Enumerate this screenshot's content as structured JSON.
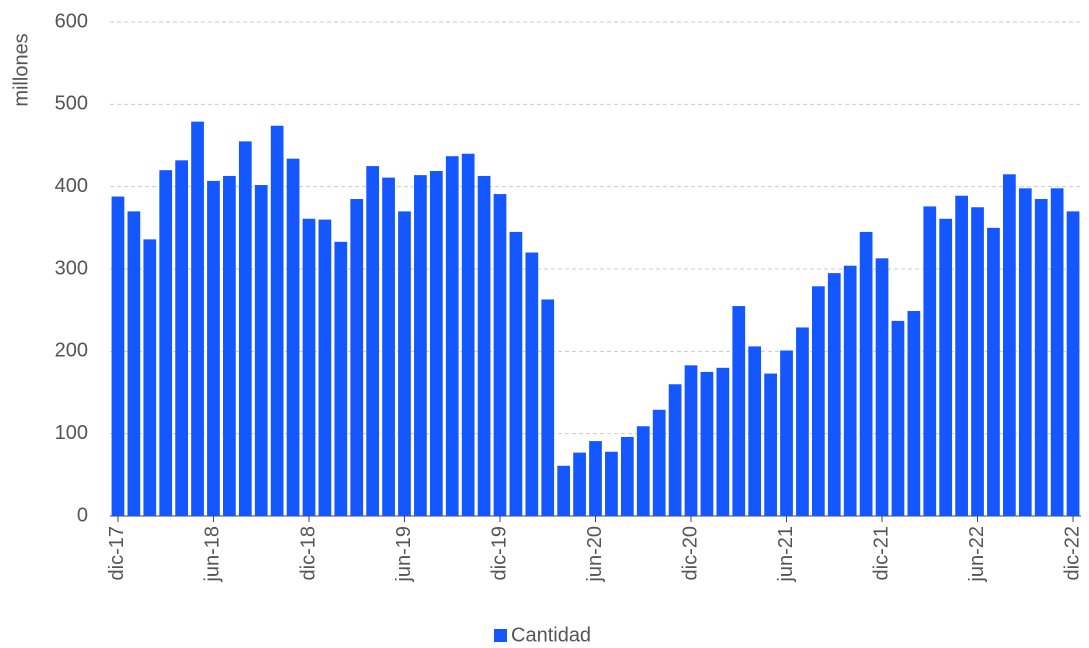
{
  "chart_data": {
    "type": "bar",
    "y_label": "millones",
    "categories": [
      "dic-17",
      null,
      null,
      null,
      null,
      null,
      "jun-18",
      null,
      null,
      null,
      null,
      null,
      "dic-18",
      null,
      null,
      null,
      null,
      null,
      "jun-19",
      null,
      null,
      null,
      null,
      null,
      "dic-19",
      null,
      null,
      null,
      null,
      null,
      "jun-20",
      null,
      null,
      null,
      null,
      null,
      "dic-20",
      null,
      null,
      null,
      null,
      null,
      "jun-21",
      null,
      null,
      null,
      null,
      null,
      "dic-21",
      null,
      null,
      null,
      null,
      null,
      "jun-22",
      null,
      null,
      null,
      null,
      null,
      "dic-22"
    ],
    "series": [
      {
        "name": "Cantidad",
        "color": "#1457ff",
        "values": [
          388,
          370,
          336,
          420,
          432,
          479,
          407,
          413,
          455,
          402,
          474,
          434,
          361,
          360,
          333,
          385,
          425,
          411,
          370,
          414,
          419,
          437,
          440,
          413,
          391,
          345,
          320,
          263,
          61,
          77,
          91,
          78,
          96,
          109,
          129,
          160,
          183,
          175,
          180,
          255,
          206,
          173,
          201,
          229,
          279,
          295,
          304,
          345,
          313,
          237,
          249,
          376,
          361,
          389,
          375,
          350,
          415,
          398,
          385,
          398,
          370
        ]
      }
    ],
    "ylim": [
      0,
      600
    ],
    "yticks": [
      0,
      100,
      200,
      300,
      400,
      500,
      600
    ],
    "grid": true,
    "legend": "bottom"
  }
}
